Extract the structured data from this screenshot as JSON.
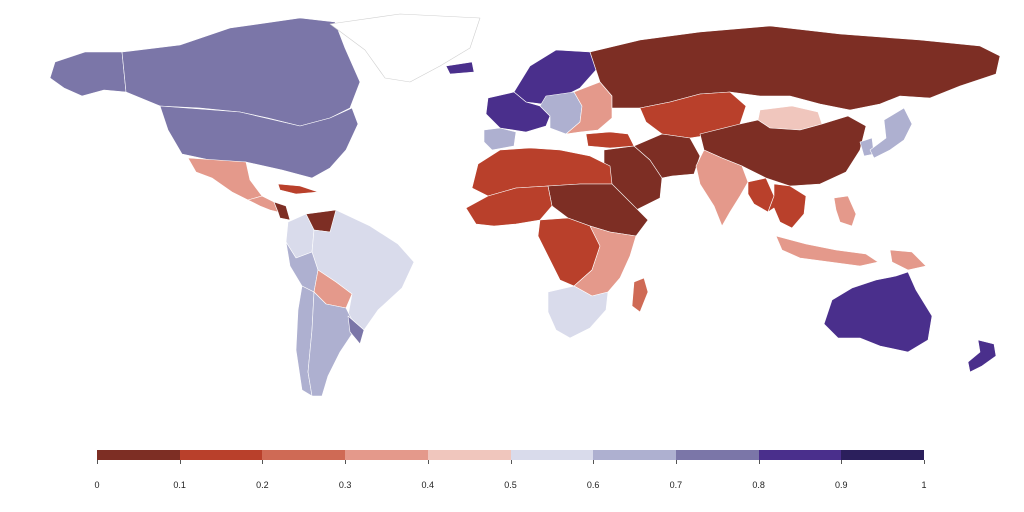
{
  "legend": {
    "colors": [
      "#7d2e24",
      "#b9402b",
      "#cf6a55",
      "#e4998b",
      "#f0c6bd",
      "#d9dbeb",
      "#aeb0d0",
      "#7b76a8",
      "#4a2f8c",
      "#2b1f5c"
    ],
    "ticks": [
      "0",
      "0.1",
      "0.2",
      "0.3",
      "0.4",
      "0.5",
      "0.6",
      "0.7",
      "0.8",
      "0.9",
      "1"
    ]
  },
  "map_data": {
    "type": "choropleth",
    "scale": [
      0,
      1
    ],
    "no_data_color": "#ffffff",
    "regions": [
      {
        "name": "Alaska",
        "value": 0.75
      },
      {
        "name": "Canada",
        "value": 0.74
      },
      {
        "name": "United States",
        "value": 0.73
      },
      {
        "name": "Greenland",
        "value": null
      },
      {
        "name": "Mexico",
        "value": 0.33
      },
      {
        "name": "Central America",
        "value": 0.3
      },
      {
        "name": "Nicaragua",
        "value": 0.05
      },
      {
        "name": "Cuba",
        "value": 0.17
      },
      {
        "name": "Venezuela",
        "value": 0.04
      },
      {
        "name": "Colombia",
        "value": 0.55
      },
      {
        "name": "Brazil",
        "value": 0.55
      },
      {
        "name": "Peru",
        "value": 0.6
      },
      {
        "name": "Bolivia",
        "value": 0.3
      },
      {
        "name": "Chile",
        "value": 0.62
      },
      {
        "name": "Argentina",
        "value": 0.64
      },
      {
        "name": "Uruguay",
        "value": 0.74
      },
      {
        "name": "Iceland",
        "value": 0.86
      },
      {
        "name": "Scandinavia",
        "value": 0.86
      },
      {
        "name": "Western Europe",
        "value": 0.82
      },
      {
        "name": "Iberia",
        "value": 0.65
      },
      {
        "name": "Central Europe",
        "value": 0.62
      },
      {
        "name": "Eastern Europe",
        "value": 0.35
      },
      {
        "name": "Russia",
        "value": 0.05
      },
      {
        "name": "Kazakhstan and Central Asia",
        "value": 0.12
      },
      {
        "name": "Turkey",
        "value": 0.12
      },
      {
        "name": "Middle East",
        "value": 0.06
      },
      {
        "name": "Iran",
        "value": 0.08
      },
      {
        "name": "Mongolia",
        "value": 0.45
      },
      {
        "name": "China",
        "value": 0.05
      },
      {
        "name": "South Korea",
        "value": 0.6
      },
      {
        "name": "Japan",
        "value": 0.65
      },
      {
        "name": "India",
        "value": 0.32
      },
      {
        "name": "Myanmar",
        "value": 0.12
      },
      {
        "name": "Southeast Asia",
        "value": 0.15
      },
      {
        "name": "Philippines",
        "value": 0.3
      },
      {
        "name": "Indonesia",
        "value": 0.35
      },
      {
        "name": "Papua New Guinea",
        "value": 0.3
      },
      {
        "name": "Australia",
        "value": 0.87
      },
      {
        "name": "New Zealand",
        "value": 0.85
      },
      {
        "name": "North Africa",
        "value": 0.15
      },
      {
        "name": "Sudan and Horn of Africa",
        "value": 0.07
      },
      {
        "name": "West Africa",
        "value": 0.18
      },
      {
        "name": "Central Africa",
        "value": 0.14
      },
      {
        "name": "East Africa",
        "value": 0.35
      },
      {
        "name": "Southern Africa",
        "value": 0.55
      },
      {
        "name": "Madagascar",
        "value": 0.2
      }
    ]
  }
}
